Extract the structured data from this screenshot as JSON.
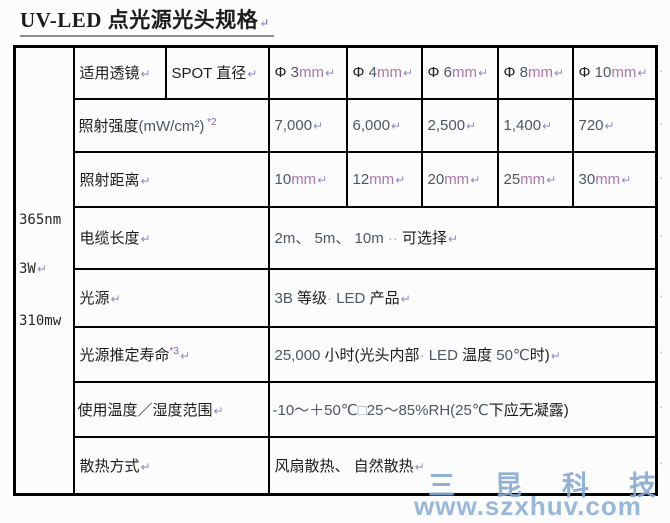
{
  "title": {
    "segments": [
      {
        "t": "UV-LED 点光源光头规格",
        "c": "zh"
      },
      {
        "t": "↵",
        "c": "ret"
      }
    ]
  },
  "table": {
    "left_col": {
      "line1": {
        "segments": [
          {
            "t": "365nm",
            "c": "mono"
          }
        ]
      },
      "line2": {
        "segments": [
          {
            "t": "3W",
            "c": "mono"
          },
          {
            "t": "↵",
            "c": "ret"
          }
        ]
      },
      "line3": {
        "segments": [
          {
            "t": "310mw",
            "c": "mono"
          }
        ]
      }
    },
    "row1": {
      "label_a": {
        "segments": [
          {
            "t": "适用透镜",
            "c": "zh"
          },
          {
            "t": "↵",
            "c": "ret"
          }
        ]
      },
      "label_b": {
        "segments": [
          {
            "t": "SPOT 直径",
            "c": "zh"
          },
          {
            "t": "↵",
            "c": "ret"
          }
        ]
      },
      "cells": [
        {
          "segments": [
            {
              "t": "Φ ",
              "c": "zh"
            },
            {
              "t": "3",
              "c": "lat"
            },
            {
              "t": "mm",
              "c": "unit"
            },
            {
              "t": "↵",
              "c": "ret"
            }
          ]
        },
        {
          "segments": [
            {
              "t": "Φ ",
              "c": "zh"
            },
            {
              "t": "4",
              "c": "lat"
            },
            {
              "t": "mm",
              "c": "unit"
            },
            {
              "t": "↵",
              "c": "ret"
            }
          ]
        },
        {
          "segments": [
            {
              "t": "Φ ",
              "c": "zh"
            },
            {
              "t": "6",
              "c": "lat"
            },
            {
              "t": "mm",
              "c": "unit"
            },
            {
              "t": "↵",
              "c": "ret"
            }
          ]
        },
        {
          "segments": [
            {
              "t": "Φ ",
              "c": "zh"
            },
            {
              "t": "8",
              "c": "lat"
            },
            {
              "t": "mm",
              "c": "unit"
            },
            {
              "t": "↵",
              "c": "ret"
            }
          ]
        },
        {
          "segments": [
            {
              "t": "Φ ",
              "c": "zh"
            },
            {
              "t": "10",
              "c": "lat"
            },
            {
              "t": "mm",
              "c": "unit"
            },
            {
              "t": "↵",
              "c": "ret"
            }
          ]
        }
      ]
    },
    "row2": {
      "label": {
        "segments": [
          {
            "t": "照射强度",
            "c": "zh"
          },
          {
            "t": "(mW/cm²)",
            "c": "lat"
          },
          {
            "t": " *2",
            "c": "sup"
          }
        ]
      },
      "cells": [
        {
          "segments": [
            {
              "t": "7,000",
              "c": "lat"
            },
            {
              "t": "↵",
              "c": "ret"
            }
          ]
        },
        {
          "segments": [
            {
              "t": "6,000",
              "c": "lat"
            },
            {
              "t": "↵",
              "c": "ret"
            }
          ]
        },
        {
          "segments": [
            {
              "t": "2,500",
              "c": "lat"
            },
            {
              "t": "↵",
              "c": "ret"
            }
          ]
        },
        {
          "segments": [
            {
              "t": "1,400",
              "c": "lat"
            },
            {
              "t": "↵",
              "c": "ret"
            }
          ]
        },
        {
          "segments": [
            {
              "t": "720",
              "c": "lat"
            },
            {
              "t": "↵",
              "c": "ret"
            }
          ]
        }
      ]
    },
    "row3": {
      "label": {
        "segments": [
          {
            "t": "照射距离",
            "c": "zh"
          },
          {
            "t": "↵",
            "c": "ret"
          }
        ]
      },
      "cells": [
        {
          "segments": [
            {
              "t": "10",
              "c": "lat"
            },
            {
              "t": "mm",
              "c": "unit"
            },
            {
              "t": "↵",
              "c": "ret"
            }
          ]
        },
        {
          "segments": [
            {
              "t": "12",
              "c": "lat"
            },
            {
              "t": "mm",
              "c": "unit"
            },
            {
              "t": "↵",
              "c": "ret"
            }
          ]
        },
        {
          "segments": [
            {
              "t": "20",
              "c": "lat"
            },
            {
              "t": "mm",
              "c": "unit"
            },
            {
              "t": "↵",
              "c": "ret"
            }
          ]
        },
        {
          "segments": [
            {
              "t": "25",
              "c": "lat"
            },
            {
              "t": "mm",
              "c": "unit"
            },
            {
              "t": "↵",
              "c": "ret"
            }
          ]
        },
        {
          "segments": [
            {
              "t": "30",
              "c": "lat"
            },
            {
              "t": "mm",
              "c": "unit"
            },
            {
              "t": "↵",
              "c": "ret"
            }
          ]
        }
      ]
    },
    "row4": {
      "label": {
        "segments": [
          {
            "t": "电缆长度",
            "c": "zh"
          },
          {
            "t": "↵",
            "c": "ret"
          }
        ]
      },
      "value": {
        "segments": [
          {
            "t": "2m、 5m、 10m",
            "c": "lat"
          },
          {
            "t": " ·· ",
            "c": "mark"
          },
          {
            "t": "可选择",
            "c": "zh"
          },
          {
            "t": "↵",
            "c": "ret"
          }
        ]
      }
    },
    "row5": {
      "label": {
        "segments": [
          {
            "t": "光源",
            "c": "zh"
          },
          {
            "t": "↵",
            "c": "ret"
          }
        ]
      },
      "value": {
        "segments": [
          {
            "t": "3B ",
            "c": "lat"
          },
          {
            "t": "等级",
            "c": "zh"
          },
          {
            "t": "· ",
            "c": "mark"
          },
          {
            "t": "LED ",
            "c": "lat"
          },
          {
            "t": "产品",
            "c": "zh"
          },
          {
            "t": "↵",
            "c": "ret"
          }
        ]
      }
    },
    "row6": {
      "label": {
        "segments": [
          {
            "t": "光源推定寿命",
            "c": "zh"
          },
          {
            "t": "*3",
            "c": "sup"
          },
          {
            "t": "↵",
            "c": "ret"
          }
        ]
      },
      "value": {
        "segments": [
          {
            "t": "25,000 ",
            "c": "lat"
          },
          {
            "t": "小时(光头内部",
            "c": "zh"
          },
          {
            "t": "· ",
            "c": "mark"
          },
          {
            "t": "LED ",
            "c": "lat"
          },
          {
            "t": "温度 ",
            "c": "zh"
          },
          {
            "t": "50℃",
            "c": "lat"
          },
          {
            "t": "时)",
            "c": "zh"
          },
          {
            "t": "↵",
            "c": "ret"
          }
        ]
      }
    },
    "row7": {
      "label": {
        "segments": [
          {
            "t": "使用温度／湿度范围",
            "c": "zh"
          },
          {
            "t": "↵",
            "c": "ret"
          }
        ]
      },
      "value": {
        "segments": [
          {
            "t": "-10～＋50℃",
            "c": "lat"
          },
          {
            "t": "□",
            "c": "mark"
          },
          {
            "t": "25～85%RH(25℃",
            "c": "lat"
          },
          {
            "t": "下应无凝露)",
            "c": "zh"
          }
        ]
      }
    },
    "row8": {
      "label": {
        "segments": [
          {
            "t": "散热方式",
            "c": "zh"
          },
          {
            "t": "↵",
            "c": "ret"
          }
        ]
      },
      "value": {
        "segments": [
          {
            "t": "风扇散热、 自然散热",
            "c": "zh"
          },
          {
            "t": "↵",
            "c": "ret"
          }
        ]
      }
    }
  },
  "marks": {
    "row_end": "·"
  },
  "watermark": {
    "company": "三昆科技",
    "url": "www.szxhuv.com",
    "color": "#8db0d8"
  },
  "colors": {
    "border": "#000000",
    "label_text": "#1c1c1c",
    "latin_text": "#4e5565",
    "unit_text": "#a878aa",
    "superscript": "#8b5fa8",
    "format_mark": "#8f88c4",
    "watermark": "#8db0d8"
  }
}
